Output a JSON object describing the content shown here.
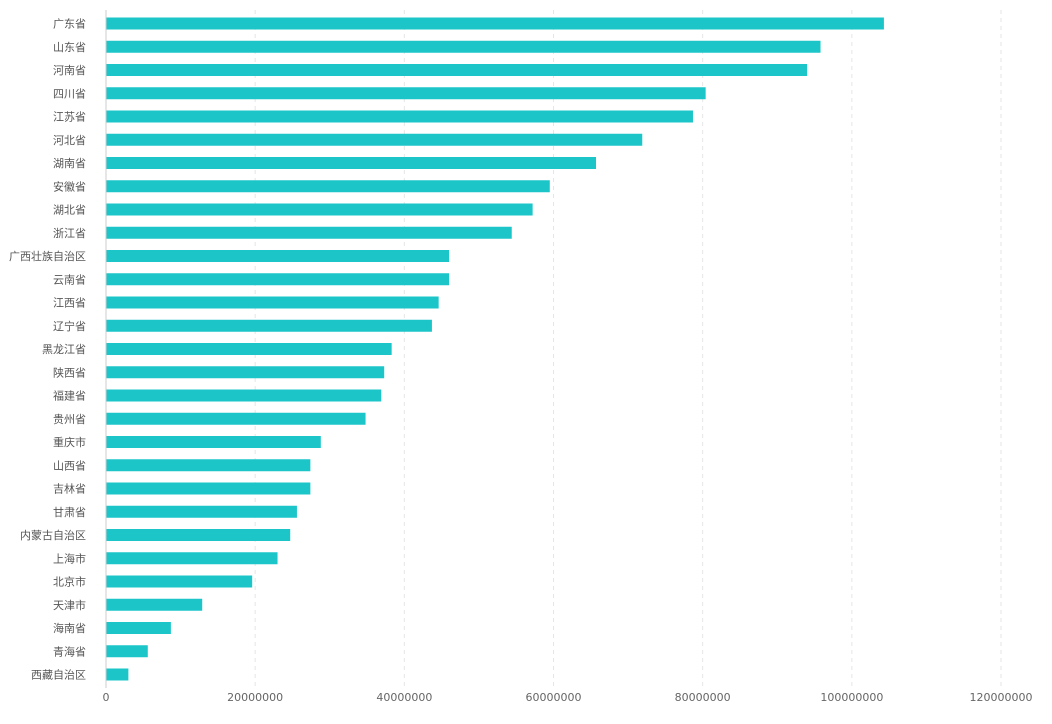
{
  "chart_data": {
    "type": "bar",
    "orientation": "horizontal",
    "categories": [
      "广东省",
      "山东省",
      "河南省",
      "四川省",
      "江苏省",
      "河北省",
      "湖南省",
      "安徽省",
      "湖北省",
      "浙江省",
      "广西壮族自治区",
      "云南省",
      "江西省",
      "辽宁省",
      "黑龙江省",
      "陕西省",
      "福建省",
      "贵州省",
      "重庆市",
      "山西省",
      "吉林省",
      "甘肃省",
      "内蒙古自治区",
      "上海市",
      "北京市",
      "天津市",
      "海南省",
      "青海省",
      "西藏自治区"
    ],
    "values": [
      104300000,
      95800000,
      94000000,
      80400000,
      78700000,
      71900000,
      65700000,
      59500000,
      57200000,
      54400000,
      46000000,
      46000000,
      44600000,
      43700000,
      38300000,
      37300000,
      36900000,
      34800000,
      28800000,
      27400000,
      27400000,
      25600000,
      24700000,
      23000000,
      19600000,
      12900000,
      8700000,
      5600000,
      3000000
    ],
    "xlim": [
      0,
      120000000
    ],
    "x_ticks": [
      "0",
      "20000000",
      "40000000",
      "60000000",
      "80000000",
      "100000000",
      "120000000"
    ],
    "x_tick_values": [
      0,
      20000000,
      40000000,
      60000000,
      80000000,
      100000000,
      120000000
    ],
    "grid": "vertical dashed",
    "bar_color": "#1bc5c8",
    "title": "",
    "xlabel": "",
    "ylabel": ""
  }
}
